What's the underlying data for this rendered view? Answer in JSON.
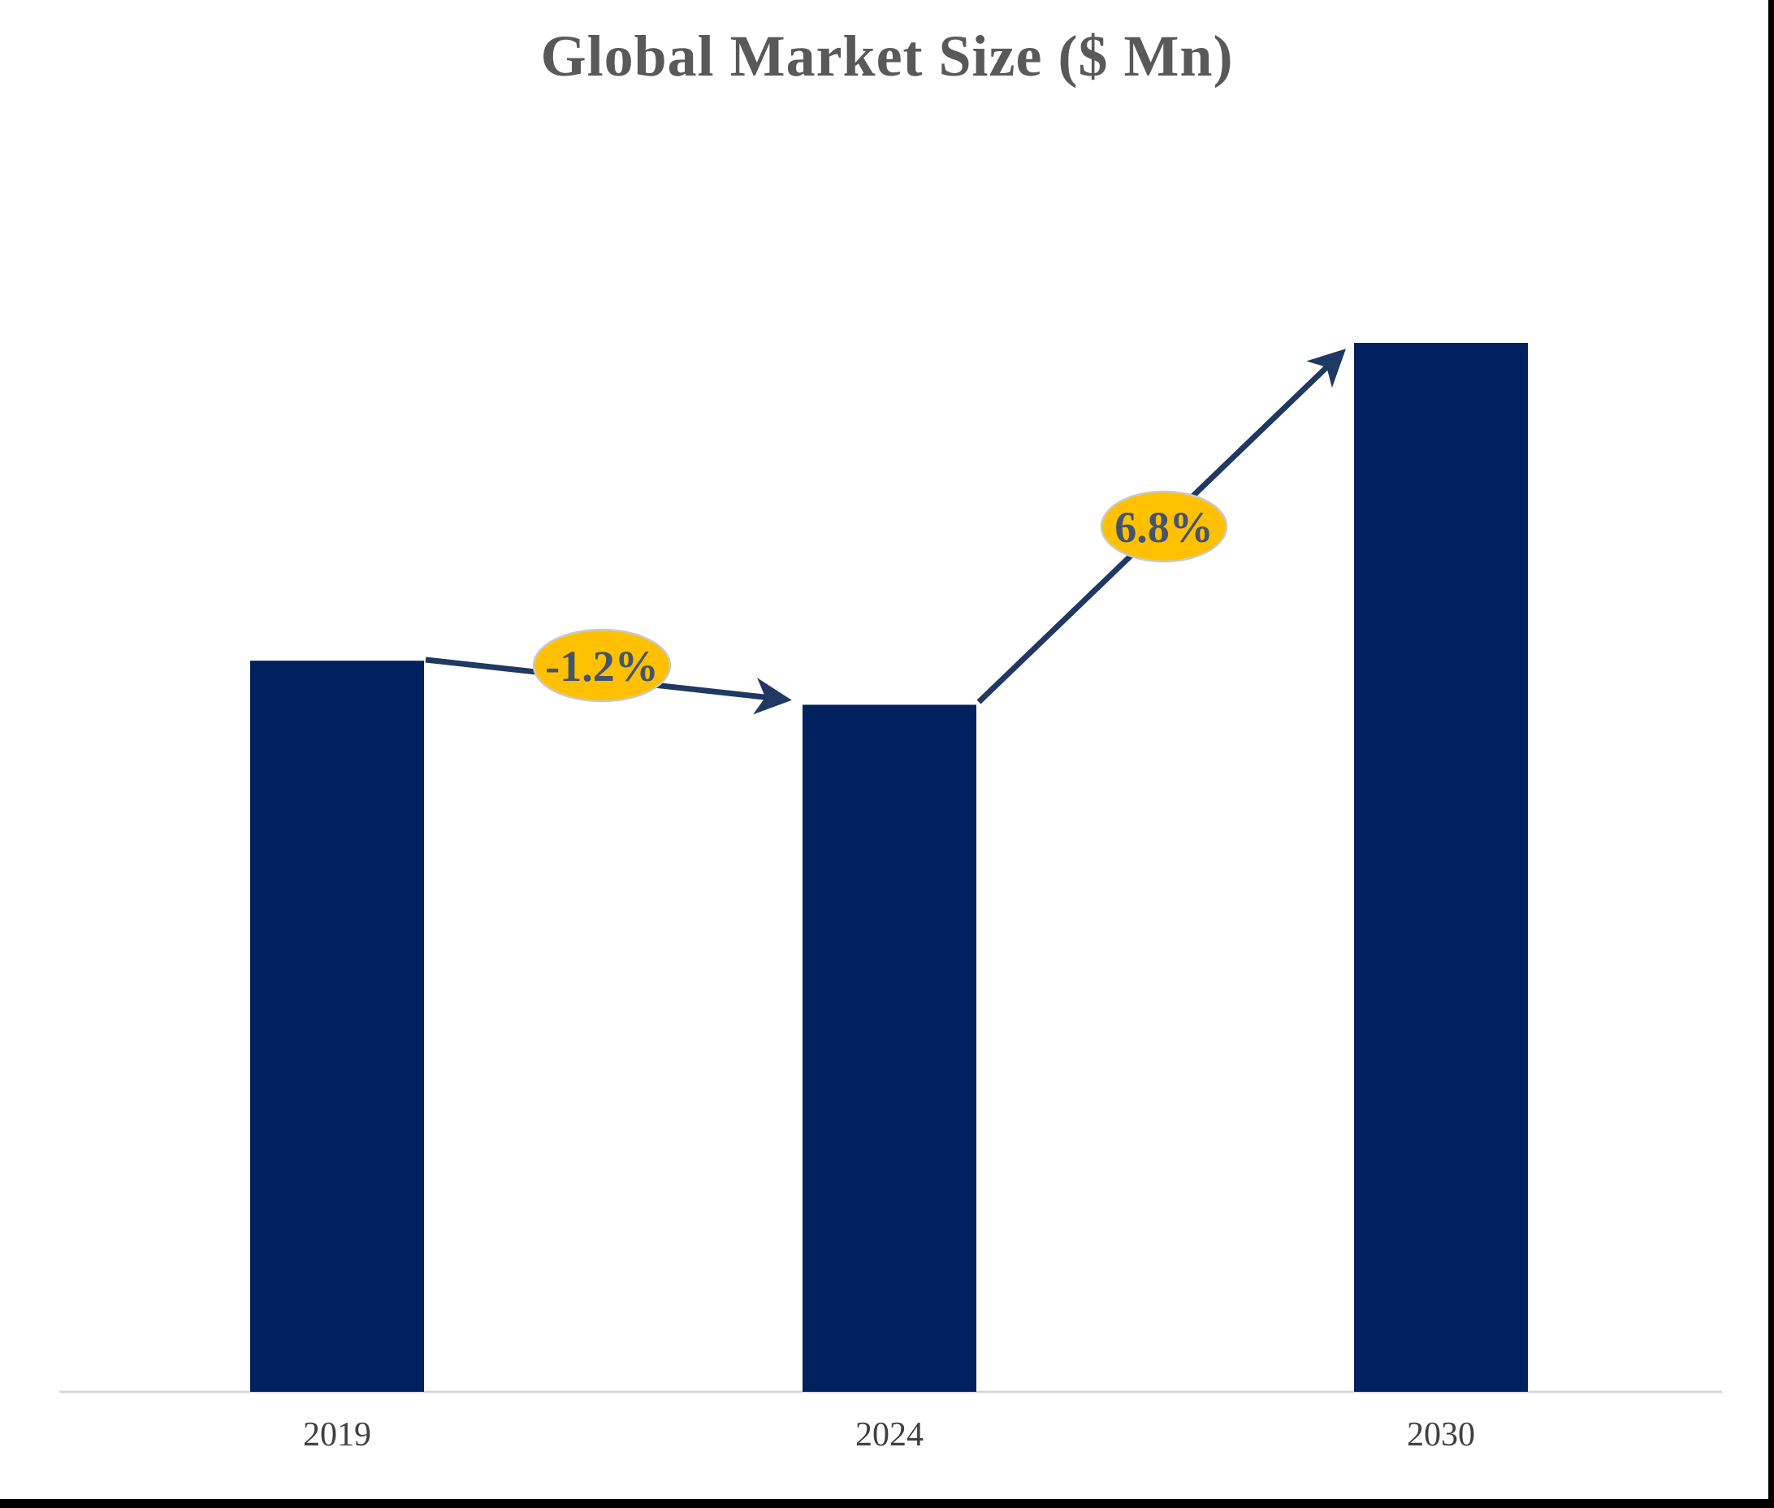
{
  "chart_data": {
    "type": "bar",
    "title": "Global Market Size ($ Mn)",
    "categories": [
      "2019",
      "2024",
      "2030"
    ],
    "series": [
      {
        "name": "Global Market Size",
        "values_relative_pct_of_tallest": [
          69.7,
          65.5,
          100.0
        ]
      }
    ],
    "values_note": "No numeric y-axis or data labels are shown in the chart; bar heights are expressed as a percentage of the tallest (2030) bar as read from pixels.",
    "xlabel": "",
    "ylabel": "",
    "grid": false,
    "legend": false,
    "annotations": [
      {
        "from": "2019",
        "to": "2024",
        "label": "-1.2%"
      },
      {
        "from": "2024",
        "to": "2030",
        "label": "6.8%"
      }
    ],
    "colors": {
      "bar": "#002060",
      "arrow": "#1F3864",
      "bubble_fill": "#FFC000",
      "bubble_text": "#44546A",
      "title": "#595959",
      "axis_line": "#D9D9D9",
      "tick_label": "#404040",
      "frame_border": "#000000"
    }
  }
}
